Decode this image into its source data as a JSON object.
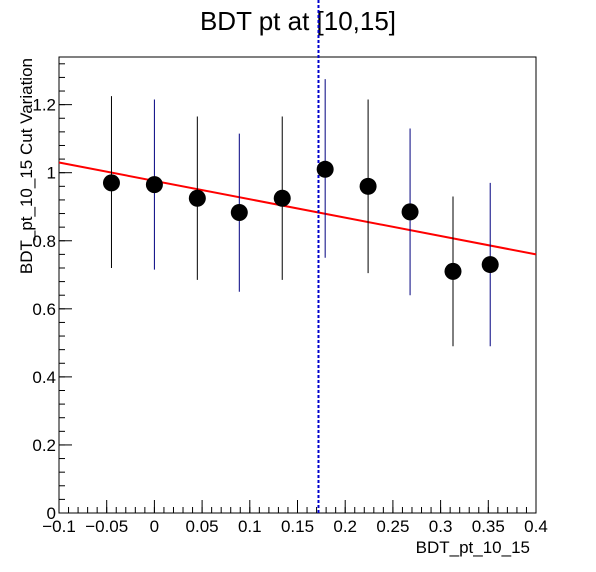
{
  "chart_data": {
    "type": "scatter",
    "title": "BDT pt at [10,15]",
    "xlabel": "BDT_pt_10_15",
    "ylabel": "BDT_pt_10_15 Cut Variation",
    "xlim": [
      -0.1,
      0.4
    ],
    "ylim": [
      0,
      1.34
    ],
    "grid": false,
    "x_ticks": [
      -0.1,
      -0.05,
      0,
      0.05,
      0.1,
      0.15,
      0.2,
      0.25,
      0.3,
      0.35,
      0.4
    ],
    "x_tick_labels": [
      "−0.1",
      "−0.05",
      "0",
      "0.05",
      "0.1",
      "0.15",
      "0.2",
      "0.25",
      "0.3",
      "0.35",
      "0.4"
    ],
    "y_ticks": [
      0,
      0.2,
      0.4,
      0.6,
      0.8,
      1,
      1.2
    ],
    "y_tick_labels": [
      "0",
      "0.2",
      "0.4",
      "0.6",
      "0.8",
      "1",
      "1.2"
    ],
    "points": [
      {
        "x": -0.045,
        "y": 0.97,
        "ylow": 0.72,
        "yhigh": 1.225
      },
      {
        "x": 0.0,
        "y": 0.965,
        "ylow": 0.715,
        "yhigh": 1.215
      },
      {
        "x": 0.045,
        "y": 0.925,
        "ylow": 0.685,
        "yhigh": 1.165
      },
      {
        "x": 0.089,
        "y": 0.883,
        "ylow": 0.65,
        "yhigh": 1.115
      },
      {
        "x": 0.134,
        "y": 0.925,
        "ylow": 0.685,
        "yhigh": 1.165
      },
      {
        "x": 0.179,
        "y": 1.01,
        "ylow": 0.75,
        "yhigh": 1.275
      },
      {
        "x": 0.224,
        "y": 0.96,
        "ylow": 0.705,
        "yhigh": 1.215
      },
      {
        "x": 0.268,
        "y": 0.885,
        "ylow": 0.64,
        "yhigh": 1.13
      },
      {
        "x": 0.313,
        "y": 0.71,
        "ylow": 0.49,
        "yhigh": 0.93
      },
      {
        "x": 0.352,
        "y": 0.73,
        "ylow": 0.49,
        "yhigh": 0.97
      }
    ],
    "fit_line": {
      "x": [
        -0.1,
        0.4
      ],
      "y": [
        1.03,
        0.76
      ],
      "color": "#ff0000"
    },
    "reference_line": {
      "x": 0.172,
      "color": "#0000cc",
      "style": "dotted"
    },
    "errorbar_colors": [
      "#000000",
      "#000080"
    ],
    "marker_color": "#000000"
  }
}
